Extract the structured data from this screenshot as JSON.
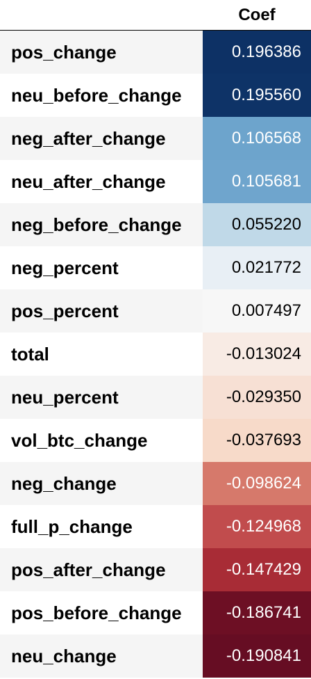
{
  "table": {
    "header": "Coef",
    "rows": [
      {
        "label": "pos_change",
        "value": "0.196386",
        "bg": "#0d3165",
        "fg": "#ffffff"
      },
      {
        "label": "neu_before_change",
        "value": "0.195560",
        "bg": "#0e3367",
        "fg": "#ffffff"
      },
      {
        "label": "neg_after_change",
        "value": "0.106568",
        "bg": "#6da4cc",
        "fg": "#ffffff"
      },
      {
        "label": "neu_after_change",
        "value": "0.105681",
        "bg": "#6fa5cd",
        "fg": "#ffffff"
      },
      {
        "label": "neg_before_change",
        "value": "0.055220",
        "bg": "#c0d9e8",
        "fg": "#000000"
      },
      {
        "label": "neg_percent",
        "value": "0.021772",
        "bg": "#e8eff5",
        "fg": "#000000"
      },
      {
        "label": "pos_percent",
        "value": "0.007497",
        "bg": "#f7f7f7",
        "fg": "#000000"
      },
      {
        "label": "total",
        "value": "-0.013024",
        "bg": "#f8ebe4",
        "fg": "#000000"
      },
      {
        "label": "neu_percent",
        "value": "-0.029350",
        "bg": "#f7e0d4",
        "fg": "#000000"
      },
      {
        "label": "vol_btc_change",
        "value": "-0.037693",
        "bg": "#f7dac9",
        "fg": "#000000"
      },
      {
        "label": "neg_change",
        "value": "-0.098624",
        "bg": "#d6796b",
        "fg": "#ffffff"
      },
      {
        "label": "full_p_change",
        "value": "-0.124968",
        "bg": "#c14c4d",
        "fg": "#ffffff"
      },
      {
        "label": "pos_after_change",
        "value": "-0.147429",
        "bg": "#a82c36",
        "fg": "#ffffff"
      },
      {
        "label": "pos_before_change",
        "value": "-0.186741",
        "bg": "#6d0f24",
        "fg": "#ffffff"
      },
      {
        "label": "neu_change",
        "value": "-0.190841",
        "bg": "#660d23",
        "fg": "#ffffff"
      }
    ]
  }
}
